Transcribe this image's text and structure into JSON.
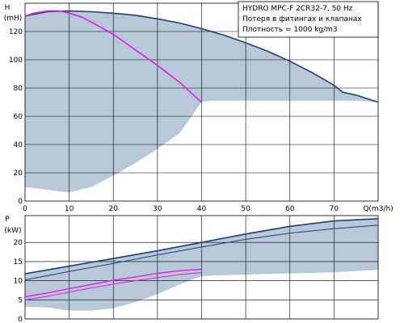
{
  "info_box": {
    "line1": "HYDRO MPC-F 2CR32-7, 50 Hz",
    "line2": "Потеря в фитингах и клапанах",
    "line3": "Плотность = 1000 kg/m3"
  },
  "colors": {
    "area": "#b7c8d8",
    "curve_dark": "#1f3f73",
    "curve_magenta": "#e21ce2",
    "grid": "#000000"
  },
  "chart_data": [
    {
      "type": "line",
      "ylabel": "H",
      "yunit": "(mH)",
      "xlabel": "Q(m3/h)",
      "xlim": [
        0,
        80
      ],
      "ylim": [
        0,
        140
      ],
      "x_ticks": [
        0,
        10,
        20,
        30,
        40,
        50,
        60,
        70
      ],
      "y_ticks": [
        0,
        20,
        40,
        60,
        80,
        100,
        120
      ],
      "grid": true,
      "series": [
        {
          "role": "upper",
          "color": "dark-blue",
          "x": [
            0,
            5,
            10,
            15,
            20,
            25,
            30,
            35,
            40,
            45,
            50,
            55,
            60,
            65,
            70,
            72,
            75,
            80
          ],
          "y": [
            131,
            134,
            134.5,
            134,
            133,
            131.5,
            129,
            126,
            122,
            117.5,
            112,
            106,
            99,
            91,
            82,
            77,
            75,
            70
          ]
        },
        {
          "role": "single",
          "color": "magenta",
          "x": [
            0,
            2,
            5,
            8,
            10,
            13,
            16,
            20,
            25,
            30,
            35,
            40
          ],
          "y": [
            131,
            133,
            134.5,
            134.5,
            133,
            130,
            125,
            118,
            107,
            96,
            84,
            70
          ]
        },
        {
          "role": "lower-envelope",
          "x": [
            0,
            5,
            10,
            15,
            20,
            25,
            30,
            35,
            40,
            42,
            50,
            60,
            70,
            75,
            80
          ],
          "y": [
            10,
            8,
            6,
            10,
            18,
            27,
            37,
            48,
            70,
            71,
            71,
            71,
            71,
            71,
            70
          ]
        }
      ]
    },
    {
      "type": "line",
      "ylabel": "P",
      "yunit": "(kW)",
      "xlim": [
        0,
        80
      ],
      "ylim": [
        0,
        27
      ],
      "y_ticks": [
        0,
        5,
        10,
        15,
        20
      ],
      "grid": true,
      "series": [
        {
          "role": "total-upper",
          "color": "dark-blue",
          "x": [
            0,
            10,
            20,
            30,
            40,
            50,
            60,
            70,
            80
          ],
          "y": [
            11.8,
            13.8,
            15.8,
            17.8,
            20.0,
            22.2,
            24.2,
            25.6,
            26.2
          ]
        },
        {
          "role": "total-lower",
          "color": "dark-blue",
          "x": [
            0,
            10,
            20,
            30,
            40,
            50,
            60,
            70,
            80
          ],
          "y": [
            10.2,
            12.4,
            14.5,
            16.7,
            18.8,
            20.8,
            22.4,
            23.6,
            24.5
          ]
        },
        {
          "role": "single-upper",
          "color": "magenta",
          "x": [
            0,
            5,
            10,
            15,
            20,
            25,
            30,
            35,
            40
          ],
          "y": [
            5.8,
            6.8,
            7.9,
            9.0,
            10.1,
            11.0,
            11.9,
            12.6,
            13.0
          ]
        },
        {
          "role": "single-lower",
          "color": "magenta",
          "x": [
            0,
            5,
            10,
            15,
            20,
            25,
            30,
            35,
            40
          ],
          "y": [
            5.0,
            5.9,
            7.0,
            8.1,
            9.1,
            10.0,
            10.8,
            11.6,
            12.1
          ]
        },
        {
          "role": "lower-envelope",
          "x": [
            0,
            5,
            10,
            15,
            20,
            25,
            30,
            35,
            40,
            42,
            50,
            60,
            70,
            80
          ],
          "y": [
            3.2,
            3.0,
            2.2,
            2.2,
            2.8,
            4.4,
            6.5,
            9.0,
            11.2,
            11.3,
            11.6,
            11.9,
            12.2,
            12.8
          ]
        }
      ]
    }
  ]
}
